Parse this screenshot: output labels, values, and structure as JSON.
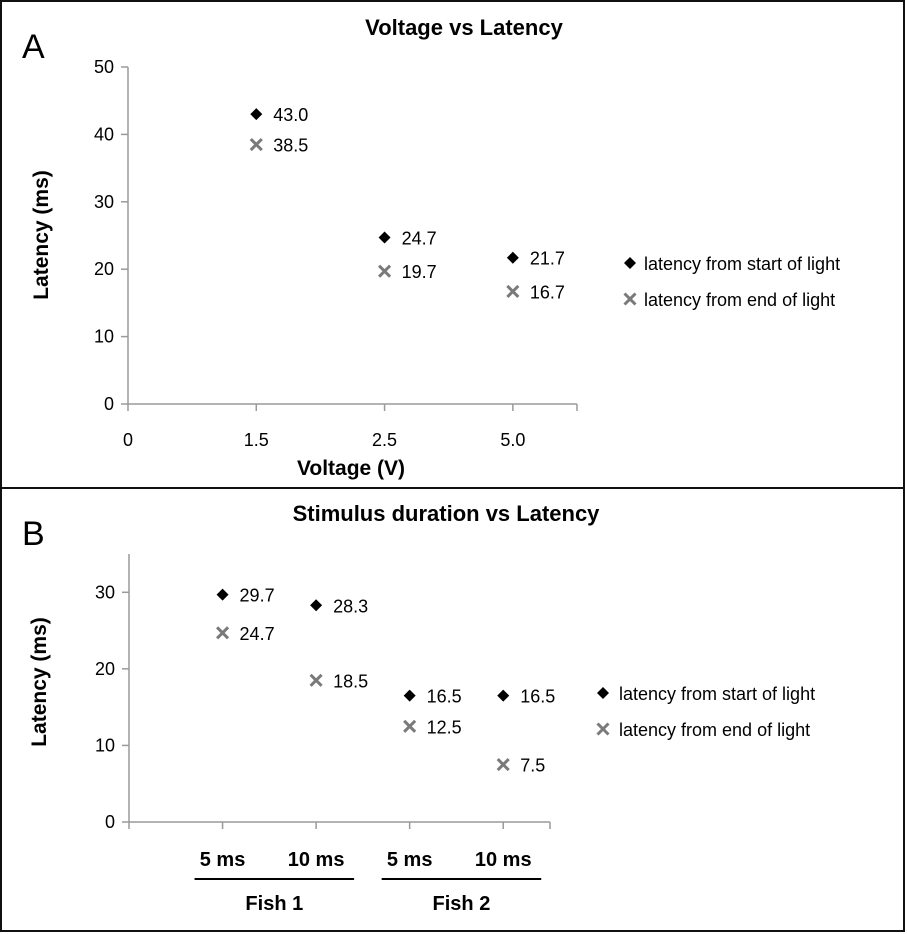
{
  "chart_data": [
    {
      "type": "scatter",
      "panel_label": "A",
      "title": "Voltage vs Latency",
      "xlabel": "Voltage (V)",
      "ylabel": "Latency (ms)",
      "categories": [
        "0",
        "1.5",
        "2.5",
        "5.0"
      ],
      "ylim": [
        0,
        50
      ],
      "yticks": [
        "0",
        "10",
        "20",
        "30",
        "40",
        "50"
      ],
      "grid": false,
      "legend_position": "right",
      "series": [
        {
          "name": "latency from start of light",
          "marker": "diamond",
          "color": "#000000",
          "x": [
            "1.5",
            "2.5",
            "5.0"
          ],
          "values": [
            43.0,
            24.7,
            21.7
          ],
          "labels": [
            "43.0",
            "24.7",
            "21.7"
          ]
        },
        {
          "name": "latency from end of light",
          "marker": "x",
          "color": "#7a7a7a",
          "x": [
            "1.5",
            "2.5",
            "5.0"
          ],
          "values": [
            38.5,
            19.7,
            16.7
          ],
          "labels": [
            "38.5",
            "19.7",
            "16.7"
          ]
        }
      ]
    },
    {
      "type": "scatter",
      "panel_label": "B",
      "title": "Stimulus duration vs Latency",
      "xlabel": "",
      "ylabel": "Latency (ms)",
      "categories": [
        "5 ms",
        "10 ms",
        "5 ms",
        "10 ms"
      ],
      "groups": [
        "Fish 1",
        "Fish 2"
      ],
      "ylim": [
        0,
        35
      ],
      "yticks": [
        "0",
        "10",
        "20",
        "30"
      ],
      "grid": false,
      "legend_position": "right",
      "series": [
        {
          "name": "latency from start of light",
          "marker": "diamond",
          "color": "#000000",
          "values": [
            29.7,
            28.3,
            16.5,
            16.5
          ],
          "labels": [
            "29.7",
            "28.3",
            "16.5",
            "16.5"
          ]
        },
        {
          "name": "latency from end of light",
          "marker": "x",
          "color": "#7a7a7a",
          "values": [
            24.7,
            18.5,
            12.5,
            7.5
          ],
          "labels": [
            "24.7",
            "18.5",
            "12.5",
            "7.5"
          ]
        }
      ]
    }
  ]
}
